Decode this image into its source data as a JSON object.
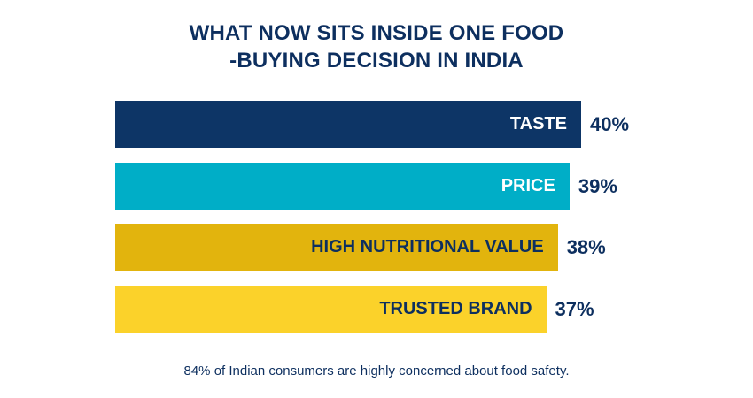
{
  "chart_data": {
    "type": "bar",
    "orientation": "horizontal",
    "title_lines": [
      "WHAT NOW SITS INSIDE ONE FOOD",
      "-BUYING DECISION IN INDIA"
    ],
    "categories": [
      "TASTE",
      "PRICE",
      "HIGH NUTRITIONAL VALUE",
      "TRUSTED BRAND"
    ],
    "values": [
      40,
      39,
      38,
      37
    ],
    "value_labels": [
      "40%",
      "39%",
      "38%",
      "37%"
    ],
    "bar_colors": [
      "#0d3566",
      "#00aec7",
      "#e2b40d",
      "#fbd22a"
    ],
    "label_colors": [
      "#ffffff",
      "#ffffff",
      "#0d2f5f",
      "#0d2f5f"
    ],
    "unit": "%",
    "footnote": "84% of Indian consumers are highly concerned about food safety."
  }
}
